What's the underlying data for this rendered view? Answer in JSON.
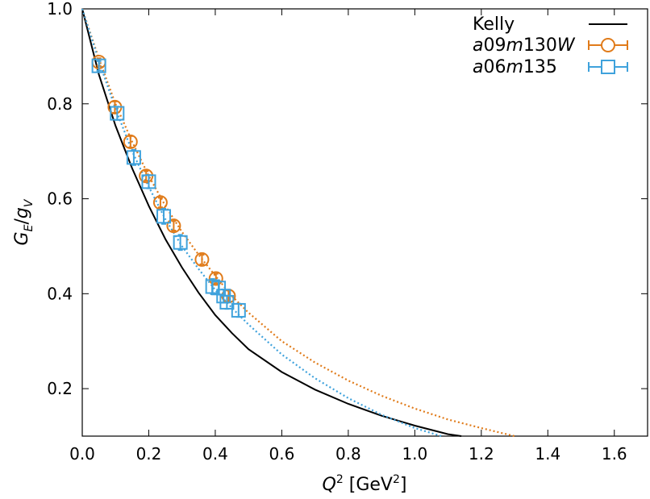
{
  "chart_data": {
    "type": "line",
    "xlabel": {
      "base": "Q",
      "sup": "2",
      "unit_open": " [GeV",
      "unit_sup": "2",
      "unit_close": "]"
    },
    "ylabel": {
      "base": "G",
      "sub": "E",
      "slash": "/",
      "den": "g",
      "den_sub": "V"
    },
    "xlim": [
      0.0,
      1.7
    ],
    "ylim": [
      0.1,
      1.0
    ],
    "x_ticks": [
      0.0,
      0.2,
      0.4,
      0.6,
      0.8,
      1.0,
      1.2,
      1.4,
      1.6
    ],
    "x_tick_labels": [
      "0.0",
      "0.2",
      "0.4",
      "0.6",
      "0.8",
      "1.0",
      "1.2",
      "1.4",
      "1.6"
    ],
    "y_ticks": [
      0.2,
      0.4,
      0.6,
      0.8,
      1.0
    ],
    "y_tick_labels": [
      "0.2",
      "0.4",
      "0.6",
      "0.8",
      "1.0"
    ],
    "grid": false,
    "legend_position": "top-right",
    "series": [
      {
        "name": "Kelly",
        "kind": "line",
        "color": "#000000",
        "x": [
          0.0,
          0.05,
          0.1,
          0.15,
          0.2,
          0.25,
          0.3,
          0.35,
          0.4,
          0.45,
          0.5,
          0.6,
          0.7,
          0.8,
          0.9,
          1.0,
          1.1,
          1.14
        ],
        "y": [
          1.0,
          0.862,
          0.754,
          0.664,
          0.585,
          0.515,
          0.455,
          0.402,
          0.355,
          0.317,
          0.283,
          0.235,
          0.198,
          0.168,
          0.143,
          0.122,
          0.104,
          0.1
        ]
      },
      {
        "name": "a09m130W",
        "name_parts": {
          "a": "a",
          "n1": "09",
          "m": "m",
          "n2": "130",
          "w": "W"
        },
        "kind": "points",
        "marker": "circle",
        "color": "#e07b1a",
        "x": [
          0.05,
          0.098,
          0.145,
          0.192,
          0.235,
          0.275,
          0.36,
          0.402,
          0.44
        ],
        "y": [
          0.888,
          0.793,
          0.72,
          0.648,
          0.592,
          0.543,
          0.472,
          0.432,
          0.395
        ],
        "yerr": [
          0.008,
          0.012,
          0.012,
          0.01,
          0.01,
          0.01,
          0.01,
          0.01,
          0.012
        ],
        "fit": {
          "x": [
            0.0,
            0.05,
            0.1,
            0.15,
            0.2,
            0.25,
            0.3,
            0.35,
            0.4,
            0.45,
            0.5,
            0.6,
            0.7,
            0.8,
            0.9,
            1.0,
            1.1,
            1.2,
            1.3
          ],
          "y": [
            1.0,
            0.895,
            0.8,
            0.72,
            0.648,
            0.585,
            0.53,
            0.482,
            0.438,
            0.395,
            0.36,
            0.3,
            0.255,
            0.217,
            0.185,
            0.158,
            0.135,
            0.117,
            0.1
          ]
        }
      },
      {
        "name": "a06m135",
        "name_parts": {
          "a": "a",
          "n1": "06",
          "m": "m",
          "n2": "135",
          "w": ""
        },
        "kind": "points",
        "marker": "square",
        "color": "#3fa2dc",
        "x": [
          0.05,
          0.105,
          0.155,
          0.2,
          0.245,
          0.295,
          0.392,
          0.41,
          0.425,
          0.435,
          0.47
        ],
        "y": [
          0.88,
          0.78,
          0.687,
          0.636,
          0.563,
          0.508,
          0.415,
          0.412,
          0.395,
          0.382,
          0.365
        ],
        "yerr": [
          0.01,
          0.014,
          0.016,
          0.014,
          0.016,
          0.016,
          0.016,
          0.014,
          0.014,
          0.014,
          0.014
        ],
        "fit": {
          "x": [
            0.0,
            0.05,
            0.1,
            0.15,
            0.2,
            0.25,
            0.3,
            0.35,
            0.4,
            0.45,
            0.5,
            0.6,
            0.7,
            0.8,
            0.9,
            1.0,
            1.08
          ],
          "y": [
            1.0,
            0.89,
            0.79,
            0.7,
            0.625,
            0.557,
            0.5,
            0.452,
            0.408,
            0.37,
            0.335,
            0.272,
            0.222,
            0.18,
            0.145,
            0.117,
            0.1
          ]
        }
      }
    ]
  }
}
